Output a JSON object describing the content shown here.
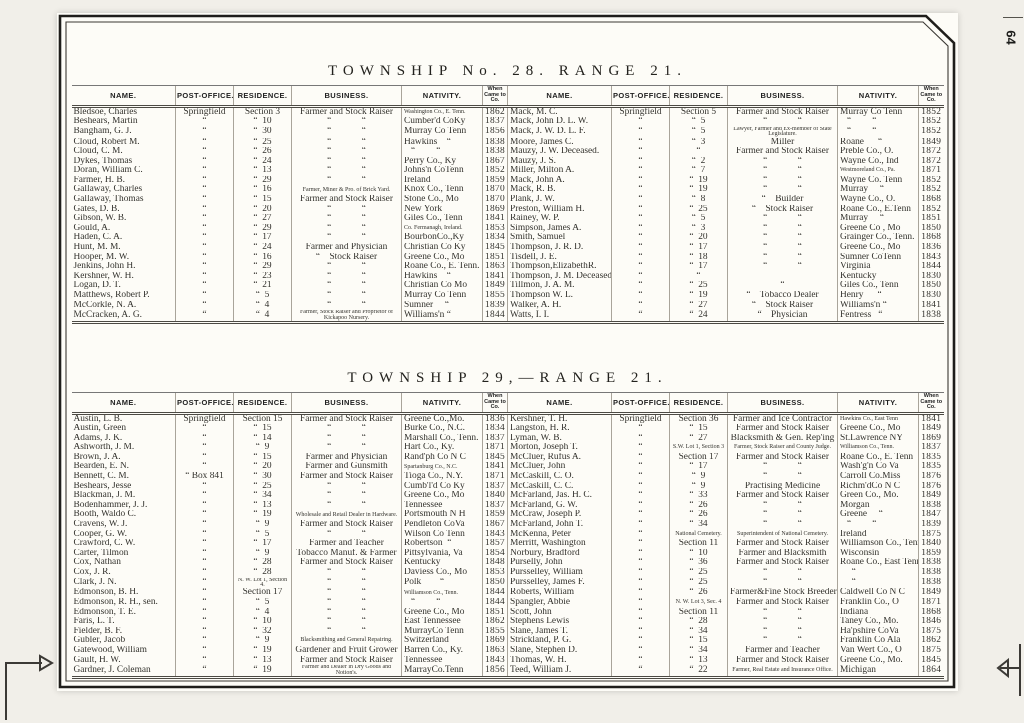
{
  "page": {
    "number": "64",
    "tables": [
      {
        "title": "TOWNSHIP No. 28. RANGE 21.",
        "headers": [
          "NAME.",
          "POST-OFFICE.",
          "RESIDENCE.",
          "BUSINESS.",
          "NATIVITY.",
          "When Came to Co."
        ],
        "left_rows": [
          [
            "Bledsoe, Charles",
            "Springfield",
            "Section 3",
            "Farmer and Stock Raiser",
            "Washington Co., E. Tenn.",
            "1862"
          ],
          [
            "Beshears, Martin",
            "“",
            "“  10",
            "“             “",
            "Cumber'd CoKy",
            "1837"
          ],
          [
            "Bangham, G. J.",
            "“",
            "“  30",
            "“             “",
            "Murray Co Tenn",
            "1856"
          ],
          [
            "Cloud, Robert M.",
            "“",
            "“  25",
            "“             “",
            "Hawkins    “",
            "1838"
          ],
          [
            "Cloud, C. M.",
            "“",
            "“  26",
            "“             “",
            "   “         “",
            "1838"
          ],
          [
            "Dykes, Thomas",
            "“",
            "“  24",
            "“             “",
            "Perry Co., Ky",
            "1867"
          ],
          [
            "Doran, William C.",
            "“",
            "“  13",
            "“             “",
            "Johns'n CoTenn",
            "1852"
          ],
          [
            "Farmer, H. B.",
            "“",
            "“  29",
            "“             “",
            "Ireland",
            "1859"
          ],
          [
            "Gallaway, Charles",
            "“",
            "“  16",
            "Farmer, Miner & Pro. of Brick Yard.",
            "Knox Co., Tenn",
            "1870"
          ],
          [
            "Gallaway, Thomas",
            "“",
            "“  15",
            "Farmer and Stock Raiser",
            "Stone Co., Mo",
            "1870"
          ],
          [
            "Gates, D. B.",
            "“",
            "“  20",
            "“             “",
            "New York",
            "1869"
          ],
          [
            "Gibson, W. B.",
            "“",
            "“  27",
            "“             “",
            "Giles Co., Tenn",
            "1841"
          ],
          [
            "Gould, A.",
            "“",
            "“  29",
            "“             “",
            "Co. Fermanagh, Ireland.",
            "1853"
          ],
          [
            "Haden, C. A.",
            "“",
            "“  17",
            "“             “",
            "BourbonCo.,Ky",
            "1834"
          ],
          [
            "Hunt, M. M.",
            "“",
            "“  24",
            "Farmer and Physician",
            "Christian Co Ky",
            "1845"
          ],
          [
            "Hooper, M. W.",
            "“",
            "“  16",
            "“    Stock Raiser",
            "Greene Co., Mo",
            "1851"
          ],
          [
            "Jenkins, John H.",
            "“",
            "“  29",
            "“             “",
            "Roane Co., E. Tenn.",
            "1863"
          ],
          [
            "Kershner, W. H.",
            "“",
            "“  23",
            "“             “",
            "Hawkins    “",
            "1841"
          ],
          [
            "Logan, D. T.",
            "“",
            "“  21",
            "“             “",
            "Christian Co Mo",
            "1849"
          ],
          [
            "Matthews, Robert P.",
            "“",
            "“  5",
            "“             “",
            "Murray Co Tenn",
            "1855"
          ],
          [
            "McCorkle, N. A.",
            "“",
            "“  4",
            "“             “",
            "Sumner     “",
            "1839"
          ],
          [
            "McCracken, A. G.",
            "“",
            "“  4",
            "Farmer, Stock Raiser and Proprietor of Kickapoo Nursery.",
            "Williams'n “",
            "1844"
          ]
        ],
        "right_rows": [
          [
            "Mack, M. C.",
            "Springfield",
            "Section 5",
            "Farmer and Stock Raiser",
            "Murray Co Tenn",
            "1852"
          ],
          [
            "Mack, John D. L. W.",
            "“",
            "“  5",
            "“             “",
            "   “         “",
            "1852"
          ],
          [
            "Mack, J. W. D. L. F.",
            "“",
            "“  5",
            "Lawyer, Farmer and Ex-member of State Legislature.",
            "   “         “",
            "1852"
          ],
          [
            "Moore, James C.",
            "“",
            "“  3",
            "Miller",
            "Roane      “",
            "1849"
          ],
          [
            "Mauzy, J. W. Deceased.",
            "“",
            "“",
            "Farmer and Stock Raiser",
            "Preble Co., O.",
            "1872"
          ],
          [
            "Mauzy, J. S.",
            "“",
            "“  2",
            "“             “",
            "Wayne Co., Ind",
            "1872"
          ],
          [
            "Miller, Milton A.",
            "“",
            "“  7",
            "“             “",
            "Westmoreland Co., Pa.",
            "1871"
          ],
          [
            "Mack, John A.",
            "“",
            "“  19",
            "“             “",
            "Wayne Co. Tenn",
            "1852"
          ],
          [
            "Mack, R. B.",
            "“",
            "“  19",
            "“             “",
            "Murray     “",
            "1852"
          ],
          [
            "Plank, J. W.",
            "“",
            "“  8",
            "“    Builder",
            "Wayne Co., O.",
            "1868"
          ],
          [
            "Preston, William H.",
            "“",
            "“  25",
            "“    Stock Raiser",
            "Roane Co., E.Tenn",
            "1852"
          ],
          [
            "Rainey, W. P.",
            "“",
            "“  5",
            "“             “",
            "Murray     “",
            "1851"
          ],
          [
            "Simpson, James A.",
            "“",
            "“  3",
            "“             “",
            "Greene Co , Mo",
            "1850"
          ],
          [
            "Smith, Samuel",
            "“",
            "“  20",
            "“             “",
            "Grainger Co., Tenn.",
            "1868"
          ],
          [
            "Thompson, J. R. D.",
            "“",
            "“  17",
            "“             “",
            "Greene Co., Mo",
            "1836"
          ],
          [
            "Tisdell, J. E.",
            "“",
            "“  18",
            "“             “",
            "Sumner CoTenn",
            "1843"
          ],
          [
            "Thompson,ElizabethR.",
            "“",
            "“  17",
            "“             “",
            "Virginia",
            "1844"
          ],
          [
            "Thompson, J. M. Deceased.",
            "“",
            "“",
            "",
            "Kentucky",
            "1830"
          ],
          [
            "Tillmon, J. A. M.",
            "“",
            "“  25",
            "“",
            "Giles Co., Tenn",
            "1850"
          ],
          [
            "Thompson W. L.",
            "“",
            "“  19",
            "“    Tobacco Dealer",
            "Henry      “",
            "1830"
          ],
          [
            "Walker, A. H.",
            "“",
            "“  27",
            "“    Stock Raiser",
            "Williams'n “",
            "1841"
          ],
          [
            "Watts, I. I.",
            "“",
            "“  24",
            "“    Physician",
            "Fentress   “",
            "1838"
          ]
        ]
      },
      {
        "title": "TOWNSHIP 29,—RANGE 21.",
        "headers": [
          "NAME.",
          "POST-OFFICE.",
          "RESIDENCE.",
          "BUSINESS.",
          "NATIVITY.",
          "When Came to Co."
        ],
        "left_rows": [
          [
            "Austin, L. B.",
            "Springfield",
            "Section 15",
            "Farmer and Stock Raiser",
            "Greene Co.,Mo.",
            "1836"
          ],
          [
            "Austin, Green",
            "“",
            "“  15",
            "“             “",
            "Burke Co., N.C.",
            "1834"
          ],
          [
            "Adams, J. K.",
            "“",
            "“  14",
            "“             “",
            "Marshall Co., Tenn.",
            "1837"
          ],
          [
            "Ashworth, J. M.",
            "“",
            "“  9",
            "“             “",
            "Hart Co., Ky.",
            "1871"
          ],
          [
            "Brown, J. A.",
            "“",
            "“  15",
            "Farmer and Physician",
            "Rand'ph Co N C",
            "1845"
          ],
          [
            "Bearden, E. N.",
            "“",
            "“  20",
            "Farmer and Gunsmith",
            "Spartanburg Co., N.C.",
            "1841"
          ],
          [
            "Bennett, C. M.",
            "“ Box 841",
            "“  30",
            "Farmer and Stock Raiser",
            "Tioga Co., N.Y.",
            "1871"
          ],
          [
            "Beshears, Jesse",
            "“",
            "“  25",
            "“             “",
            "Cumb'l'd Co Ky",
            "1837"
          ],
          [
            "Blackman, J. M.",
            "“",
            "“  34",
            "“             “",
            "Greene Co., Mo",
            "1840"
          ],
          [
            "Bodenhammer, J. J.",
            "“",
            "“  13",
            "“             “",
            "Tennessee",
            "1837"
          ],
          [
            "Booth, Waldo C.",
            "“",
            "“  19",
            "Wholesale and Retail Dealer in Hardware.",
            "Portsmouth N H",
            "1859"
          ],
          [
            "Cravens, W. J.",
            "“",
            "“  9",
            "Farmer and Stock Raiser",
            "Pendleton CoVa",
            "1867"
          ],
          [
            "Cooper, G. W.",
            "“",
            "“  5",
            "“             “",
            "Wilson Co Tenn",
            "1843"
          ],
          [
            "Crawford, C. W.",
            "“",
            "“  17",
            "Farmer and Teacher",
            "Robertson  “",
            "1857"
          ],
          [
            "Carter, Tilmon",
            "“",
            "“  9",
            "Tobacco Manuf. & Farmer",
            "Pittsylvania, Va",
            "1854"
          ],
          [
            "Cox, Nathan",
            "“",
            "“  28",
            "Farmer and Stock Raiser",
            "Kentucky",
            "1848"
          ],
          [
            "Cox, J. R.",
            "“",
            "“  28",
            "“             “",
            "Daviess Co., Mo",
            "1853"
          ],
          [
            "Clark, J. N.",
            "“",
            "N. W. Lot 1, Section 4.",
            "“             “",
            "Polk        “",
            "1850"
          ],
          [
            "Edmonson, B. H.",
            "“",
            "Section 17",
            "“             “",
            "Williamson Co., Tenn.",
            "1844"
          ],
          [
            "Edmonson, R. H., sen.",
            "“",
            "“  5",
            "“             “",
            "   “         “",
            "1844"
          ],
          [
            "Edmonson, T. E.",
            "“",
            "“  4",
            "“             “",
            "Greene Co., Mo",
            "1851"
          ],
          [
            "Faris, L. T.",
            "“",
            "“  10",
            "“             “",
            "East Tennessee",
            "1862"
          ],
          [
            "Fielder, B. F.",
            "“",
            "“  32",
            "“             “",
            "MurrayCo Tenn",
            "1855"
          ],
          [
            "Gubler, Jacob",
            "“",
            "“  9",
            "Blacksmithing and General Repairing.",
            "Switzerland",
            "1869"
          ],
          [
            "Gatewood, William",
            "“",
            "“  19",
            "Gardener and Fruit Grower",
            "Barren Co., Ky.",
            "1863"
          ],
          [
            "Gault, H. W.",
            "“",
            "“  13",
            "Farmer and Stock Raiser",
            "Tennessee",
            "1843"
          ],
          [
            "Gardner, J. Coleman",
            "“",
            "“  19",
            "Farmer and Dealer in Dry Goods and Notion's.",
            "MarrayCo.Tenn",
            "1856"
          ]
        ],
        "right_rows": [
          [
            "Kershner, T. H.",
            "Springfield",
            "Section 36",
            "Farmer and Ice Contractor",
            "Hawkins Co., East Tenn",
            "1841"
          ],
          [
            "Langston, H. R.",
            "“",
            "“  15",
            "Farmer and Stock Raiser",
            "Greene Co., Mo",
            "1849"
          ],
          [
            "Lyman, W. B.",
            "“",
            "“  27",
            "Blacksmith & Gen. Rep'ing",
            "St.Lawrence NY",
            "1869"
          ],
          [
            "Morton, Joseph T.",
            "“",
            "S.W. Lot 1, Section 3",
            "Farmer, Stock Raiser and County Judge.",
            "Williamson Co., Tenn.",
            "1837"
          ],
          [
            "McCluer, Rufus A.",
            "“",
            "Section 17",
            "Farmer and Stock Raiser",
            "Roane Co., E. Tenn",
            "1835"
          ],
          [
            "McCluer, John",
            "“",
            "“  17",
            "“             “",
            "Wash'g'n Co Va",
            "1835"
          ],
          [
            "McCaskill, C. O.",
            "“",
            "“  9",
            "“             “",
            "Carroll Co.Miss",
            "1876"
          ],
          [
            "McCaskill, C. C.",
            "“",
            "“  9",
            "Practising Medicine",
            "Richm'dCo N C",
            "1876"
          ],
          [
            "McFarland, Jas. H. C.",
            "“",
            "“  33",
            "Farmer and Stock Raiser",
            "Green Co., Mo.",
            "1849"
          ],
          [
            "McFarland, G. W.",
            "“",
            "“  26",
            "“             “",
            "Morgan",
            "1838"
          ],
          [
            "McCraw, Joseph P.",
            "“",
            "“  26",
            "“             “",
            "Greene     “",
            "1847"
          ],
          [
            "McFarland, John T.",
            "“",
            "“  34",
            "“             “",
            "   “         “",
            "1839"
          ],
          [
            "McKenna, Peter",
            "“",
            "National Cemetery.",
            "Superintendent of National Cemetery.",
            "Ireland",
            "1875"
          ],
          [
            "Merritt, Washington",
            "“",
            "Section 11",
            "Farmer and Stock Raiser",
            "Williamson Co., Tenn",
            "1840"
          ],
          [
            "Norbury, Bradford",
            "“",
            "“  10",
            "Farmer and Blacksmith",
            "Wisconsin",
            "1859"
          ],
          [
            "Purselly, John",
            "“",
            "“  36",
            "Farmer and Stock Raiser",
            "Roane Co., East Tenn",
            "1838"
          ],
          [
            "Pursselley, William",
            "“",
            "“  25",
            "“             “",
            "     “",
            "1838"
          ],
          [
            "Pursselley, James F.",
            "“",
            "“  25",
            "“             “",
            "     “",
            "1838"
          ],
          [
            "Roberts, William",
            "“",
            "“  26",
            "Farmer&Fine Stock Breeder",
            "Caldwell Co N C",
            "1849"
          ],
          [
            "Spangler, Abbie",
            "“",
            "N. W. Lot 3, Sec. 4",
            "Farmer and Stock Raiser",
            "Franklin Co., O",
            "1871"
          ],
          [
            "Scott, John",
            "“",
            "Section 11",
            "“             “",
            "Indiana",
            "1868"
          ],
          [
            "Stephens Lewis",
            "“",
            "“  28",
            "“             “",
            "Taney Co., Mo.",
            "1846"
          ],
          [
            "Slane, James T.",
            "“",
            "“  34",
            "“             “",
            "Ha'pshire CoVa",
            "1875"
          ],
          [
            "Strickland, P. G.",
            "“",
            "“  15",
            "“             “",
            "Franklin Co Ala",
            "1862"
          ],
          [
            "Slane, Stephen D.",
            "“",
            "“  34",
            "Farmer and Teacher",
            "Van Wert Co., O",
            "1875"
          ],
          [
            "Thomas, W. H.",
            "“",
            "“  13",
            "Farmer and Stock Raiser",
            "Greene Co., Mo.",
            "1845"
          ],
          [
            "Teed, William J.",
            "“",
            "“  22",
            "Farmer, Real Estate and Insurance Office.",
            "Michigan",
            "1864"
          ]
        ]
      }
    ]
  }
}
